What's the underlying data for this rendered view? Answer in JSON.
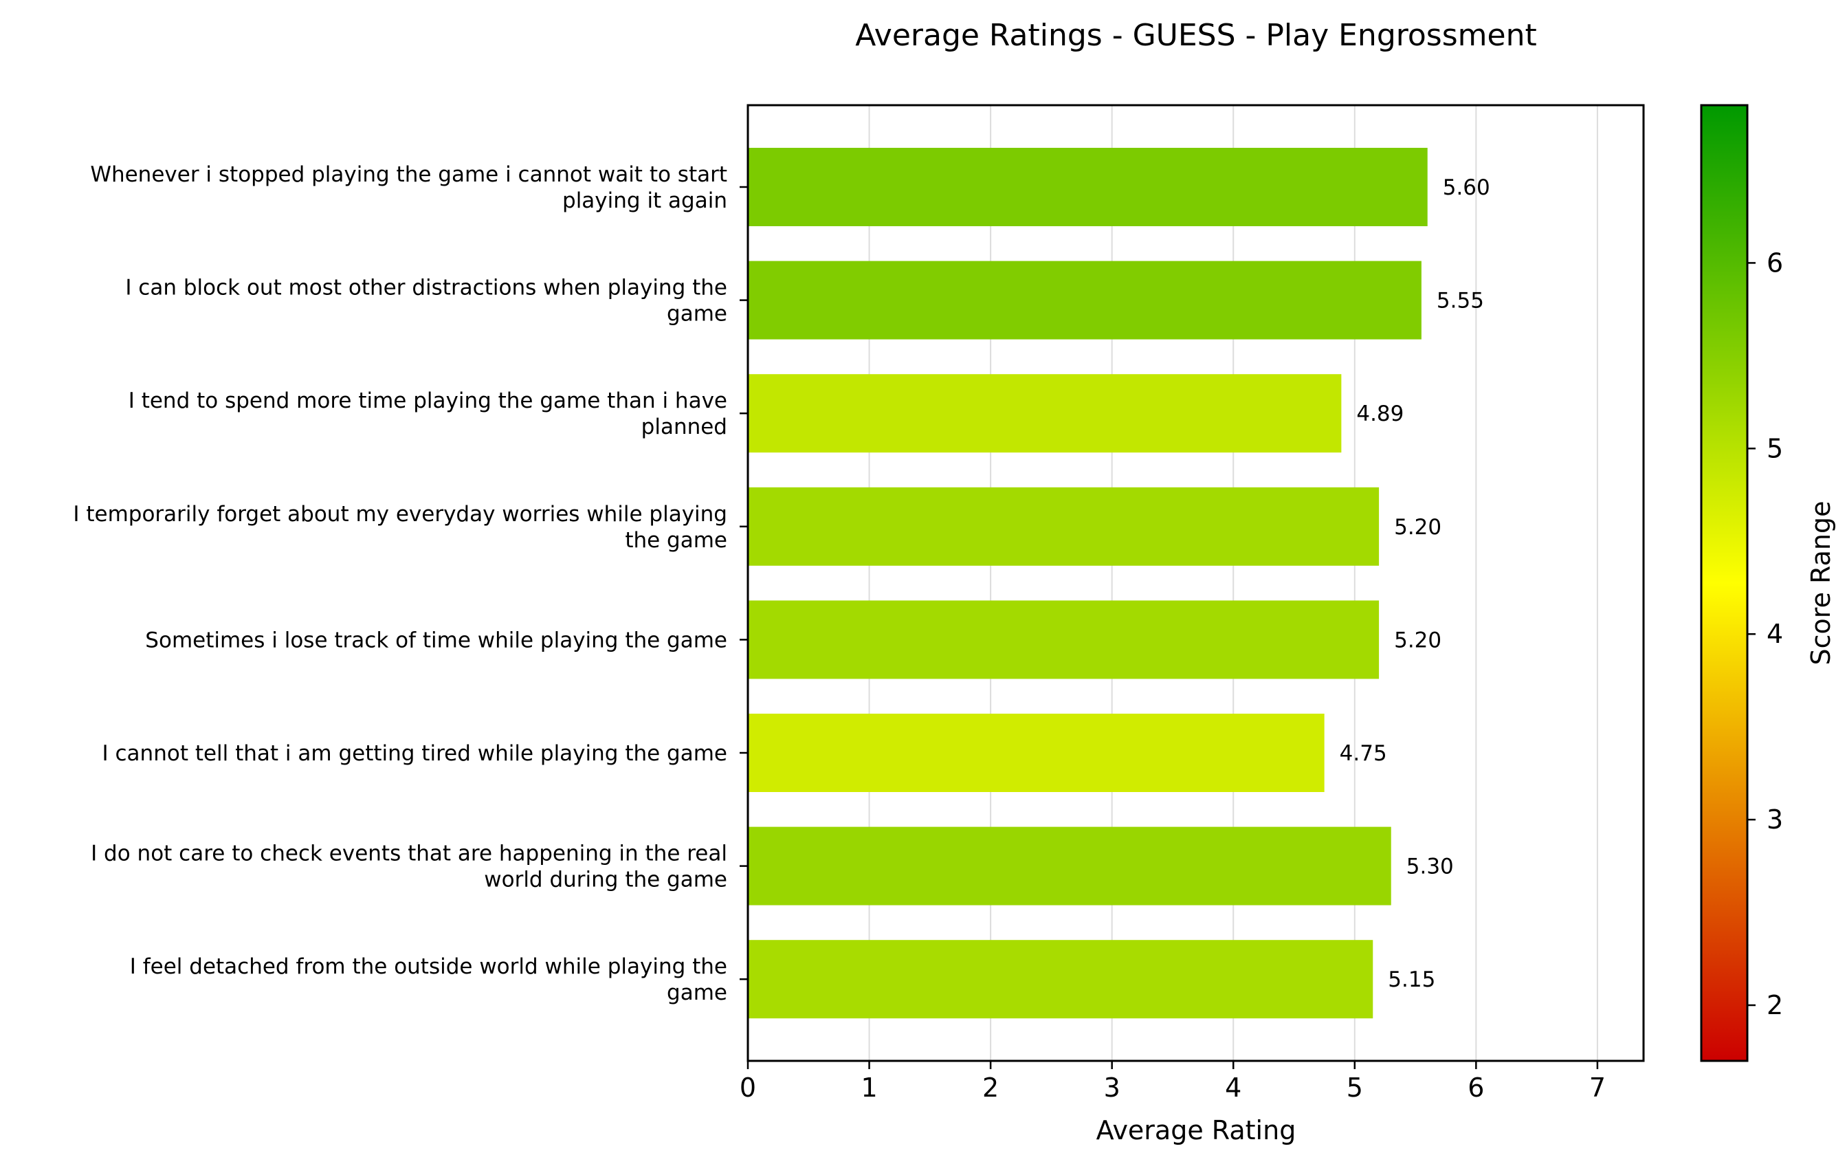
{
  "chart_data": {
    "type": "bar",
    "orientation": "horizontal",
    "title": "Average Ratings - GUESS - Play Engrossment",
    "xlabel": "Average Rating",
    "ylabel": "",
    "xlim": [
      0,
      7.38
    ],
    "xticks": [
      "0",
      "1",
      "2",
      "3",
      "4",
      "5",
      "6",
      "7"
    ],
    "grid": true,
    "categories": [
      [
        "Whenever i stopped playing the game i cannot wait to start",
        "playing it again"
      ],
      [
        "I can block out most other distractions when playing the",
        "game"
      ],
      [
        "I tend to spend more time playing the game than i have",
        "planned"
      ],
      [
        "I temporarily forget about my everyday worries while playing",
        "the game"
      ],
      [
        "Sometimes i lose track of time while playing the game"
      ],
      [
        "I cannot tell that i am getting tired while playing the game"
      ],
      [
        "I do not care to check events that are happening in the real",
        "world during the game"
      ],
      [
        "I feel detached from the outside world while playing the",
        "game"
      ]
    ],
    "values": [
      5.6,
      5.55,
      4.89,
      5.2,
      5.2,
      4.75,
      5.3,
      5.15
    ],
    "value_labels": [
      "5.60",
      "5.55",
      "4.89",
      "5.20",
      "5.20",
      "4.75",
      "5.30",
      "5.15"
    ],
    "colorbar": {
      "label": "Score Range",
      "range": [
        1.7,
        6.85
      ],
      "ticks": [
        "2",
        "3",
        "4",
        "5",
        "6"
      ],
      "colors": [
        "#cc0000",
        "#ffff00",
        "#009900"
      ]
    }
  }
}
